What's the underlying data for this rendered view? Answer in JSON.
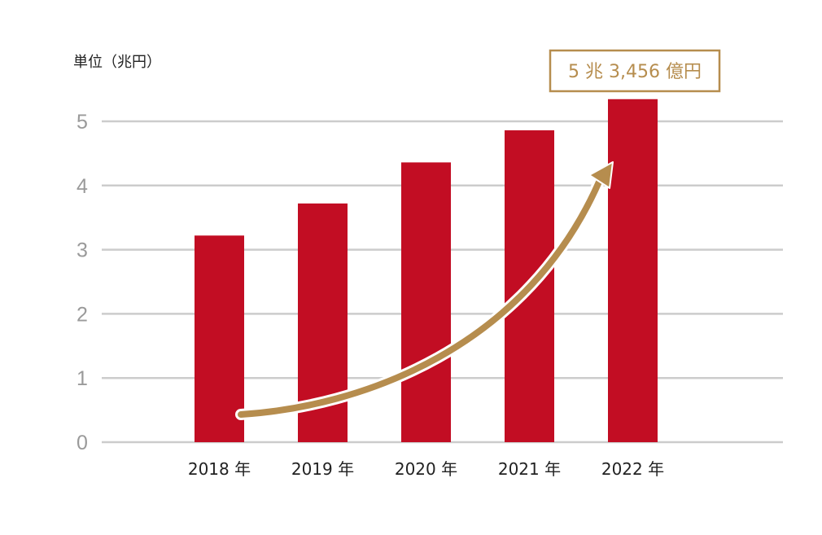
{
  "chart_data": {
    "type": "bar",
    "title": "",
    "unit_label": "単位（兆円）",
    "xlabel": "",
    "ylabel": "",
    "categories": [
      "2018 年",
      "2019 年",
      "2020 年",
      "2021 年",
      "2022 年"
    ],
    "values": [
      3.22,
      3.72,
      4.36,
      4.86,
      5.3456
    ],
    "ylim": [
      0,
      5.5
    ],
    "yticks": [
      "0",
      "1",
      "2",
      "3",
      "4",
      "5"
    ],
    "grid": true,
    "legend": "none",
    "annotation": {
      "label": "5 兆 3,456 億円",
      "target_category": "2022 年"
    },
    "trend_arrow": {
      "present": true,
      "from_category": "2018 年",
      "to_category": "2022 年"
    },
    "colors": {
      "bar": "#c20d23",
      "grid": "#cccccc",
      "annotation": "#b68d4e",
      "arrow": "#b68d4e"
    }
  }
}
